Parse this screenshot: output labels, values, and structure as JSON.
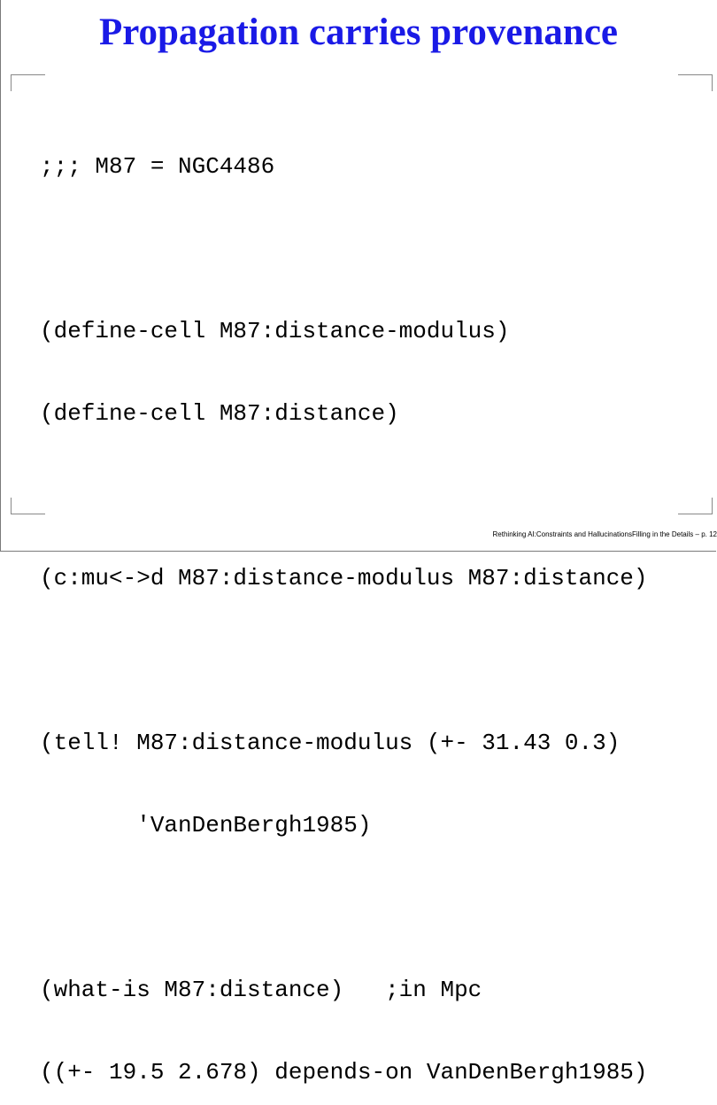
{
  "slide": {
    "title": "Propagation carries provenance",
    "code_lines": [
      ";;; M87 = NGC4486",
      "",
      "(define-cell M87:distance-modulus)",
      "(define-cell M87:distance)",
      "",
      "(c:mu<->d M87:distance-modulus M87:distance)",
      "",
      "(tell! M87:distance-modulus (+- 31.43 0.3)",
      "       'VanDenBergh1985)",
      "",
      "(what-is M87:distance)   ;in Mpc",
      "((+- 19.5 2.678) depends-on VanDenBergh1985)"
    ],
    "footer": "Rethinking AI:Constraints and HallucinationsFilling in the Details – p. 12"
  },
  "colors": {
    "title": "#1a1ae6",
    "frame": "#888888"
  }
}
